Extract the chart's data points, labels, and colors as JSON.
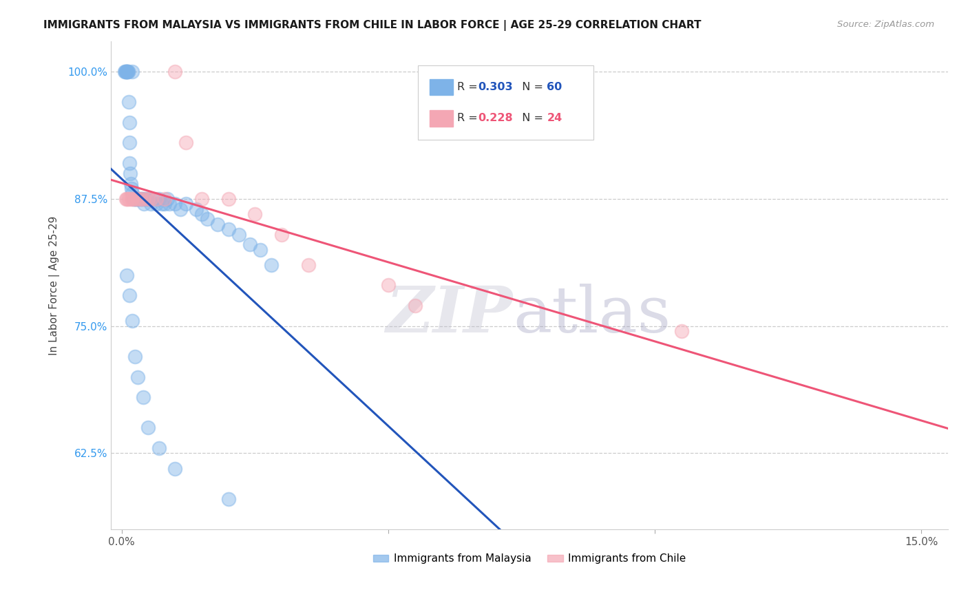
{
  "title": "IMMIGRANTS FROM MALAYSIA VS IMMIGRANTS FROM CHILE IN LABOR FORCE | AGE 25-29 CORRELATION CHART",
  "source": "Source: ZipAtlas.com",
  "ylabel": "In Labor Force | Age 25-29",
  "xlim": [
    -0.2,
    15.5
  ],
  "ylim": [
    55.0,
    103.0
  ],
  "xticks": [
    0.0,
    5.0,
    10.0,
    15.0
  ],
  "xticklabels": [
    "0.0%",
    "",
    "",
    "15.0%"
  ],
  "yticks": [
    62.5,
    75.0,
    87.5,
    100.0
  ],
  "yticklabels": [
    "62.5%",
    "75.0%",
    "87.5%",
    "100.0%"
  ],
  "malaysia_color": "#7EB3E8",
  "chile_color": "#F4A7B4",
  "malaysia_line_color": "#2255BB",
  "chile_line_color": "#EE5577",
  "malaysia_R": 0.303,
  "malaysia_N": 60,
  "chile_R": 0.228,
  "chile_N": 24,
  "malaysia_x": [
    0.05,
    0.07,
    0.08,
    0.09,
    0.1,
    0.1,
    0.12,
    0.12,
    0.13,
    0.14,
    0.15,
    0.15,
    0.16,
    0.17,
    0.18,
    0.2,
    0.2,
    0.22,
    0.25,
    0.25,
    0.28,
    0.3,
    0.3,
    0.32,
    0.35,
    0.38,
    0.4,
    0.42,
    0.45,
    0.5,
    0.55,
    0.6,
    0.65,
    0.7,
    0.75,
    0.8,
    0.85,
    0.9,
    1.0,
    1.1,
    1.2,
    1.4,
    1.5,
    1.6,
    1.8,
    2.0,
    2.2,
    2.4,
    2.6,
    2.8,
    0.1,
    0.15,
    0.2,
    0.25,
    0.3,
    0.4,
    0.5,
    0.7,
    1.0,
    2.0
  ],
  "malaysia_y": [
    100.0,
    100.0,
    100.0,
    100.0,
    100.0,
    100.0,
    100.0,
    100.0,
    97.0,
    95.0,
    93.0,
    91.0,
    90.0,
    89.0,
    88.5,
    100.0,
    88.0,
    87.5,
    87.5,
    87.5,
    87.5,
    87.5,
    87.5,
    87.5,
    87.5,
    87.5,
    87.5,
    87.0,
    87.5,
    87.5,
    87.0,
    87.5,
    87.0,
    87.5,
    87.0,
    87.0,
    87.5,
    87.0,
    87.0,
    86.5,
    87.0,
    86.5,
    86.0,
    85.5,
    85.0,
    84.5,
    84.0,
    83.0,
    82.5,
    81.0,
    80.0,
    78.0,
    75.5,
    72.0,
    70.0,
    68.0,
    65.0,
    63.0,
    61.0,
    58.0
  ],
  "chile_x": [
    0.08,
    0.1,
    0.12,
    0.15,
    0.18,
    0.2,
    0.25,
    0.3,
    0.35,
    0.4,
    0.5,
    0.55,
    0.65,
    0.8,
    1.0,
    1.2,
    1.5,
    2.0,
    2.5,
    3.0,
    3.5,
    5.0,
    5.5,
    10.5
  ],
  "chile_y": [
    87.5,
    87.5,
    87.5,
    87.5,
    87.5,
    87.5,
    87.5,
    87.5,
    87.5,
    87.5,
    87.5,
    87.5,
    87.5,
    87.5,
    100.0,
    93.0,
    87.5,
    87.5,
    86.0,
    84.0,
    81.0,
    79.0,
    77.0,
    74.5
  ],
  "watermark_zip": "ZIP",
  "watermark_atlas": "atlas",
  "background_color": "#FFFFFF"
}
